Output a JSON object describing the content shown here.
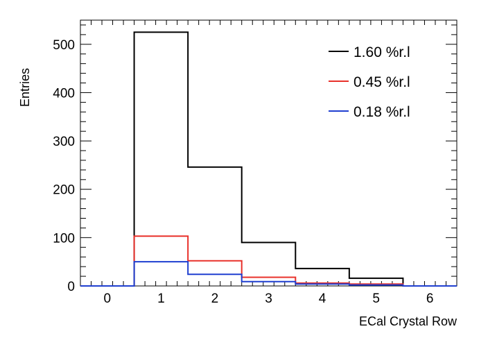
{
  "chart_data": {
    "type": "step-histogram",
    "xlabel": "ECal Crystal Row",
    "ylabel": "Entries",
    "xlim": [
      -0.5,
      6.5
    ],
    "ylim": [
      0,
      550
    ],
    "x_ticks": [
      "0",
      "1",
      "2",
      "3",
      "4",
      "5",
      "6"
    ],
    "y_ticks": [
      "0",
      "100",
      "200",
      "300",
      "400",
      "500"
    ],
    "grid": false,
    "legend_position": "top-right",
    "bins": [
      0,
      1,
      2,
      3,
      4,
      5,
      6
    ],
    "series": [
      {
        "name": "1.60 %r.l",
        "color": "#000000",
        "values": [
          0,
          525,
          246,
          90,
          36,
          16,
          0
        ]
      },
      {
        "name": "0.45 %r.l",
        "color": "#e8302a",
        "values": [
          0,
          103,
          52,
          18,
          6,
          4,
          0
        ]
      },
      {
        "name": "0.18 %r.l",
        "color": "#1f3fd0",
        "values": [
          0,
          50,
          24,
          9,
          4,
          2,
          0
        ]
      }
    ]
  }
}
